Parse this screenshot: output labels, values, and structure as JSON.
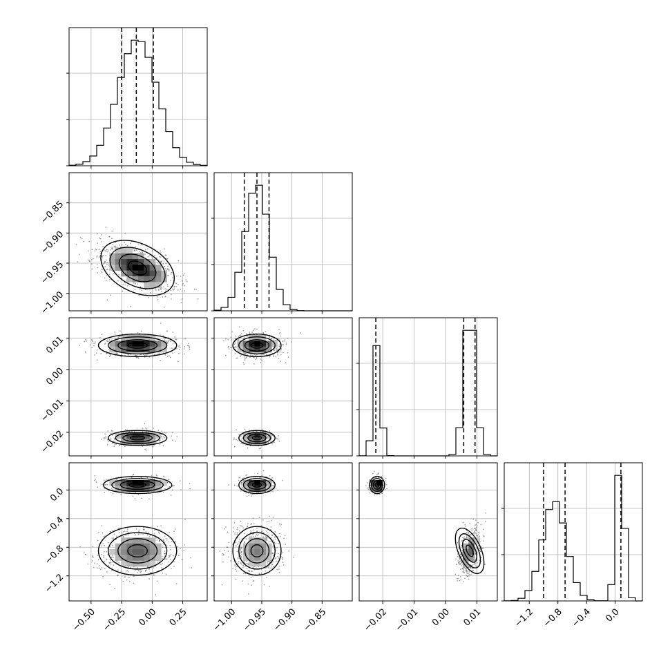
{
  "chart_data": {
    "type": "corner",
    "grid": true,
    "n_params": 4,
    "params": [
      {
        "range": [
          -0.68,
          0.45
        ],
        "ticks": [
          -0.5,
          -0.25,
          0.0,
          0.25
        ],
        "tick_labels": [
          "−0.50",
          "−0.25",
          "0.00",
          "0.25"
        ],
        "quantiles": [
          -0.25,
          -0.13,
          0.01
        ],
        "marginal": {
          "kind": "gauss",
          "components": [
            {
              "w": 1.0,
              "mu": -0.12,
              "sd": 0.16
            }
          ]
        }
      },
      {
        "range": [
          -1.029,
          -0.8
        ],
        "ticks": [
          -1.0,
          -0.95,
          -0.9,
          -0.85
        ],
        "tick_labels": [
          "−1.00",
          "−0.95",
          "−0.90",
          "−0.85"
        ],
        "quantiles": [
          -0.979,
          -0.958,
          -0.938
        ],
        "marginal": {
          "kind": "gauss",
          "components": [
            {
              "w": 1.0,
              "mu": -0.958,
              "sd": 0.02
            }
          ]
        }
      },
      {
        "range": [
          -0.0275,
          0.0165
        ],
        "ticks": [
          -0.02,
          -0.01,
          0.0,
          0.01
        ],
        "tick_labels": [
          "−0.02",
          "−0.01",
          "0.00",
          "0.01"
        ],
        "quantiles": [
          -0.0222,
          0.0058,
          0.0094
        ],
        "marginal": {
          "kind": "gauss",
          "components": [
            {
              "w": 0.33,
              "mu": -0.0218,
              "sd": 0.0012
            },
            {
              "w": 0.67,
              "mu": 0.0077,
              "sd": 0.0018
            }
          ]
        }
      },
      {
        "range": [
          -1.55,
          0.38
        ],
        "ticks": [
          -1.2,
          -0.8,
          -0.4,
          0.0
        ],
        "tick_labels": [
          "−1.2",
          "−0.8",
          "−0.4",
          "0.0"
        ],
        "quantiles": [
          -1.0,
          -0.7,
          0.08
        ],
        "marginal": {
          "kind": "gauss",
          "components": [
            {
              "w": 0.67,
              "mu": -0.85,
              "sd": 0.17
            },
            {
              "w": 0.33,
              "mu": 0.07,
              "sd": 0.06
            }
          ]
        }
      }
    ],
    "pairs": [
      {
        "row": 1,
        "col": 0,
        "components": [
          {
            "w": 1.0,
            "mx": -0.12,
            "my": -0.958,
            "sx": 0.16,
            "sy": 0.02,
            "r": -0.55
          }
        ]
      },
      {
        "row": 2,
        "col": 0,
        "components": [
          {
            "w": 0.67,
            "mx": -0.12,
            "my": 0.0077,
            "sx": 0.16,
            "sy": 0.0018,
            "r": 0.0
          },
          {
            "w": 0.33,
            "mx": -0.12,
            "my": -0.0218,
            "sx": 0.12,
            "sy": 0.0012,
            "r": 0.0
          }
        ]
      },
      {
        "row": 2,
        "col": 1,
        "components": [
          {
            "w": 0.67,
            "mx": -0.958,
            "my": 0.0077,
            "sx": 0.02,
            "sy": 0.0018,
            "r": 0.0
          },
          {
            "w": 0.33,
            "mx": -0.958,
            "my": -0.0218,
            "sx": 0.015,
            "sy": 0.0012,
            "r": 0.0
          }
        ]
      },
      {
        "row": 3,
        "col": 0,
        "components": [
          {
            "w": 0.33,
            "mx": -0.12,
            "my": 0.07,
            "sx": 0.14,
            "sy": 0.06,
            "r": 0.0
          },
          {
            "w": 0.67,
            "mx": -0.12,
            "my": -0.85,
            "sx": 0.16,
            "sy": 0.17,
            "r": 0.0
          }
        ]
      },
      {
        "row": 3,
        "col": 1,
        "components": [
          {
            "w": 0.33,
            "mx": -0.958,
            "my": 0.07,
            "sx": 0.015,
            "sy": 0.06,
            "r": 0.0
          },
          {
            "w": 0.67,
            "mx": -0.958,
            "my": -0.85,
            "sx": 0.02,
            "sy": 0.17,
            "r": 0.0
          }
        ]
      },
      {
        "row": 3,
        "col": 2,
        "components": [
          {
            "w": 0.33,
            "mx": -0.0218,
            "my": 0.07,
            "sx": 0.0012,
            "sy": 0.06,
            "r": 0.0
          },
          {
            "w": 0.67,
            "mx": 0.0077,
            "my": -0.85,
            "sx": 0.0018,
            "sy": 0.17,
            "r": 0.5
          }
        ]
      }
    ],
    "contour_levels": [
      "0.5",
      "1.0",
      "1.5",
      "2.0"
    ],
    "colors": {
      "histogram": "#000000",
      "quantile_line": "#000000",
      "points": "#555555",
      "contour": "#000000",
      "grid": "#b0b0b0"
    }
  }
}
